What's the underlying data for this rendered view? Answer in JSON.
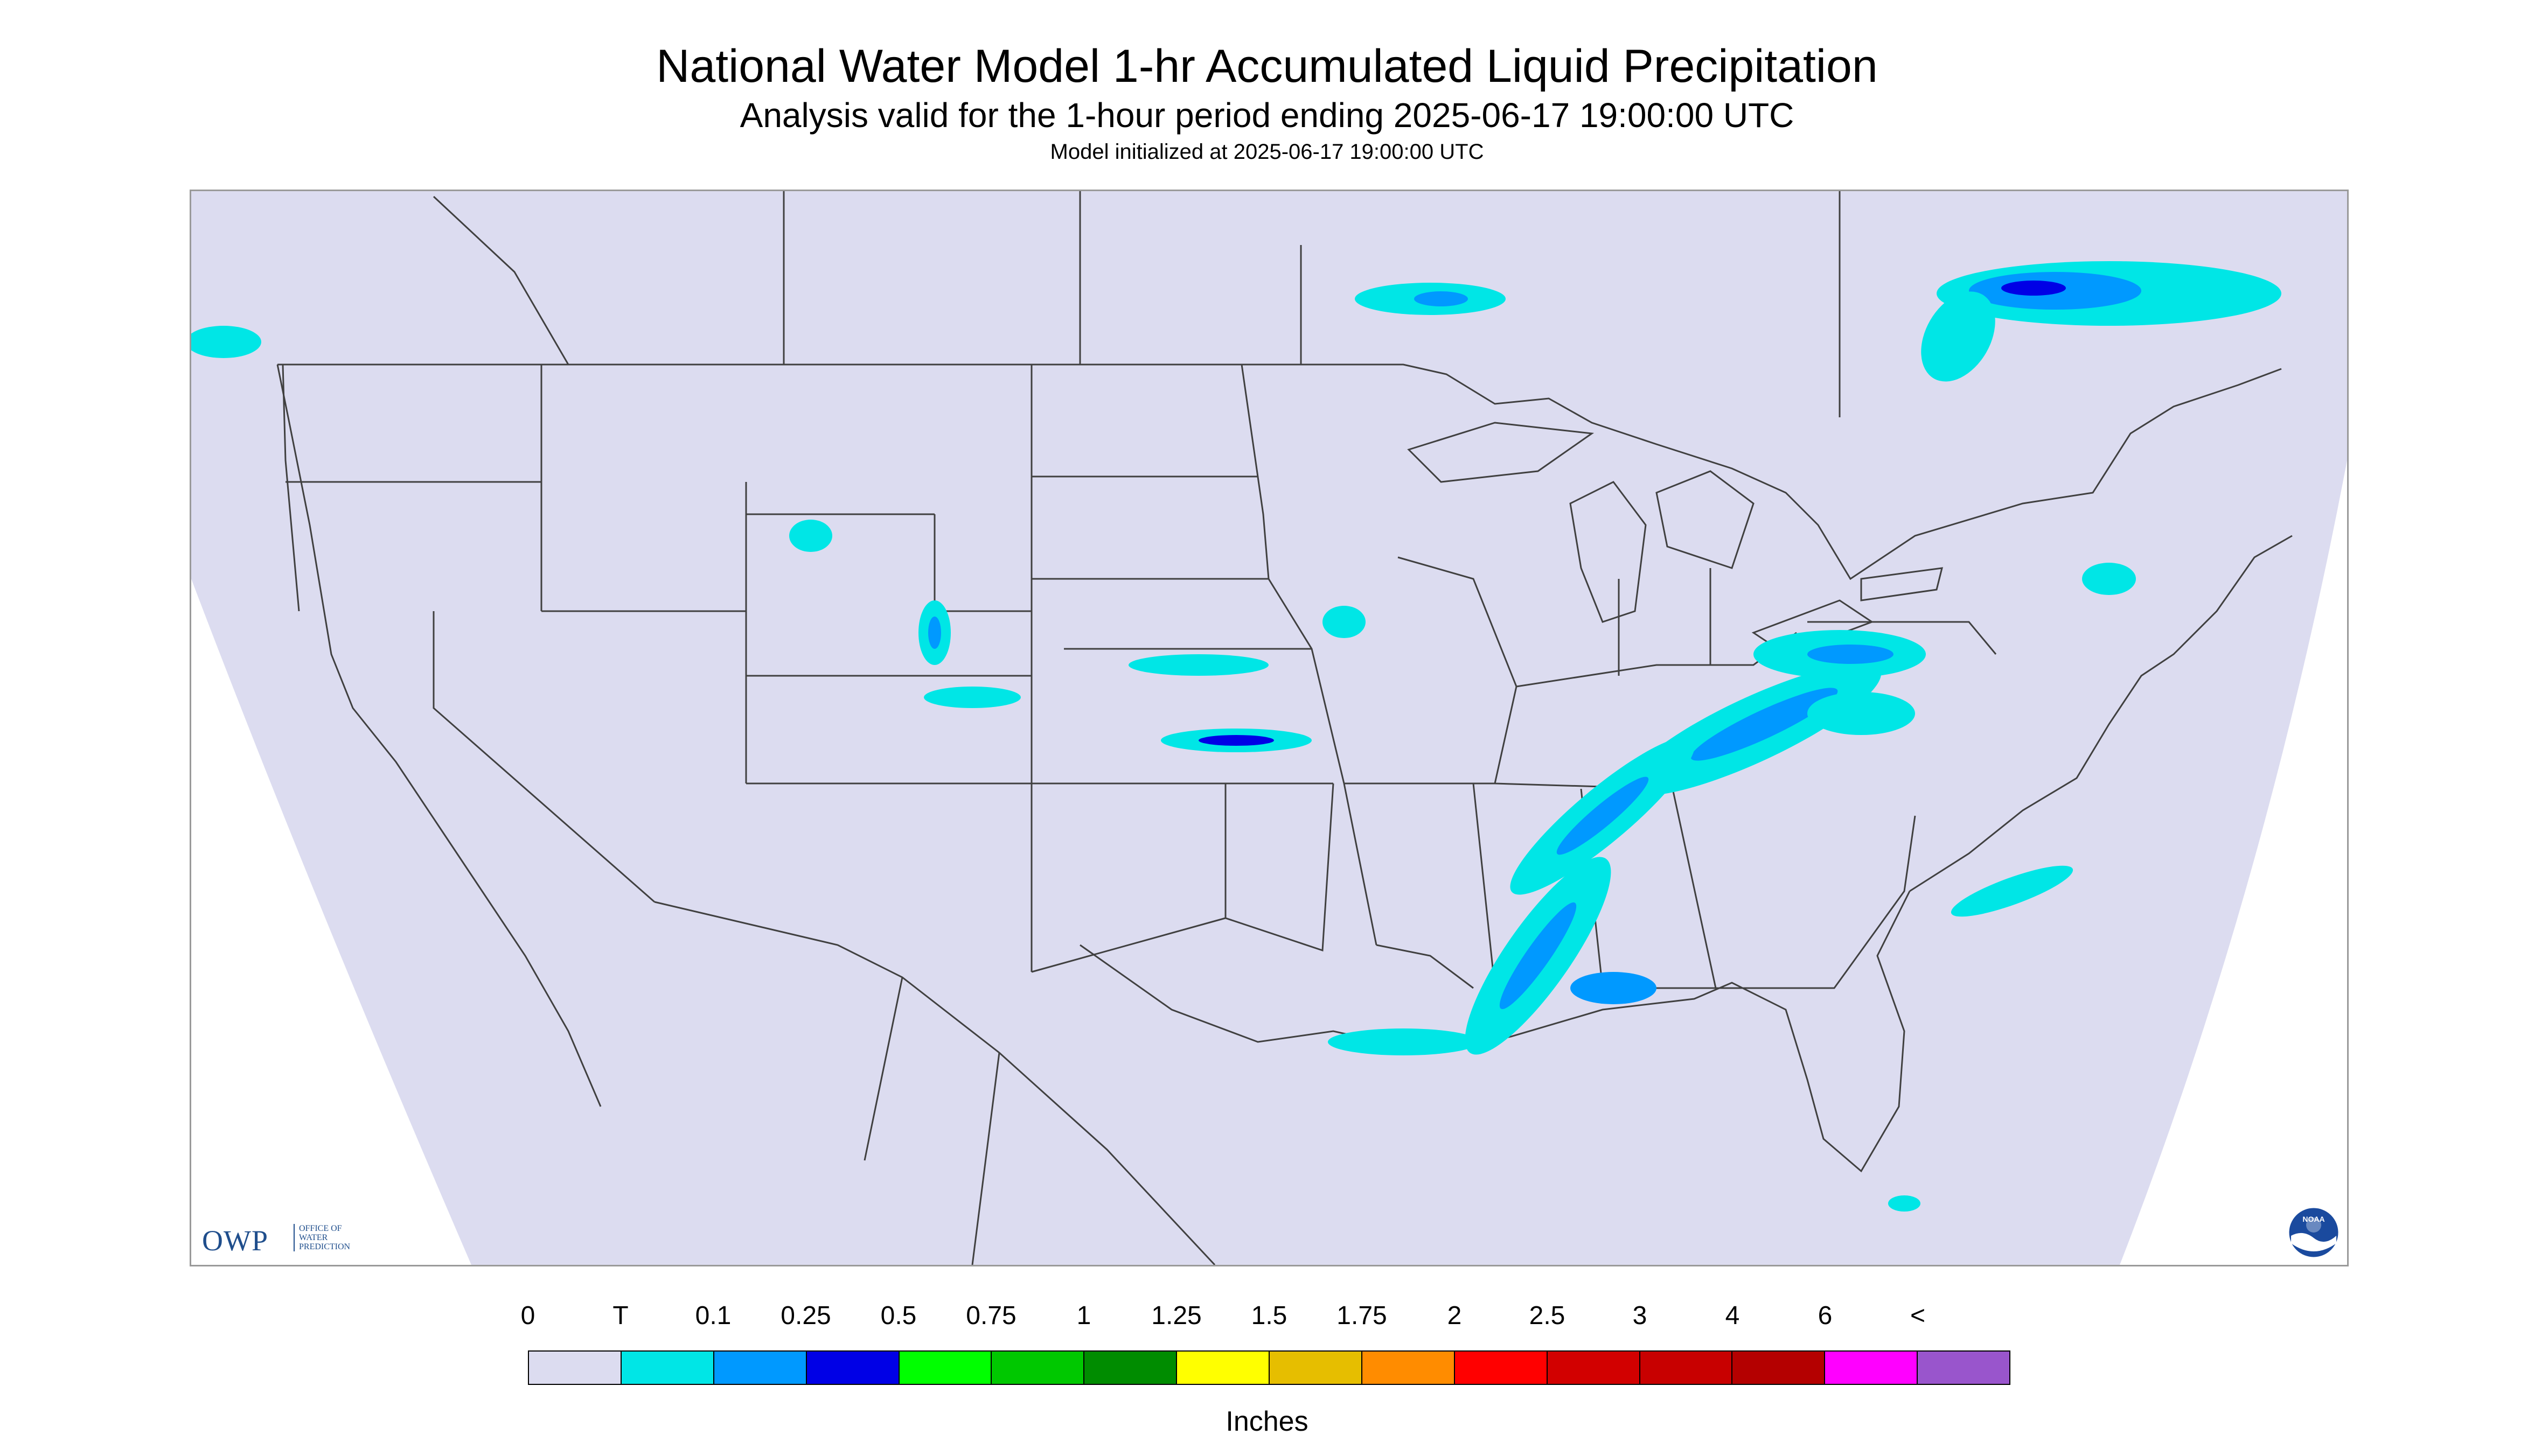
{
  "title": "National Water Model 1-hr Accumulated Liquid Precipitation",
  "subtitle": "Analysis valid for the 1-hour period ending 2025-06-17 19:00:00 UTC",
  "init_line": "Model initialized at 2025-06-17 19:00:00 UTC",
  "logos": {
    "owp": {
      "letters": "OWP",
      "lines": [
        "OFFICE OF",
        "WATER",
        "PREDICTION"
      ]
    },
    "noaa": {
      "text": "NOAA"
    }
  },
  "legend": {
    "labels": [
      "0",
      "T",
      "0.1",
      "0.25",
      "0.5",
      "0.75",
      "1",
      "1.25",
      "1.5",
      "1.75",
      "2",
      "2.5",
      "3",
      "4",
      "6",
      "<"
    ],
    "colors": [
      "#dcdcf0",
      "#00e6e6",
      "#0099ff",
      "#0000e6",
      "#00ff00",
      "#00c800",
      "#008c00",
      "#ffff00",
      "#e6be00",
      "#ff8c00",
      "#ff0000",
      "#d20000",
      "#c80000",
      "#b40000",
      "#ff00ff",
      "#9955cc"
    ],
    "units": "Inches"
  },
  "map": {
    "background_color": "#dcdcf0",
    "outside_color": "#ffffff",
    "boundary_color": "#404040"
  }
}
